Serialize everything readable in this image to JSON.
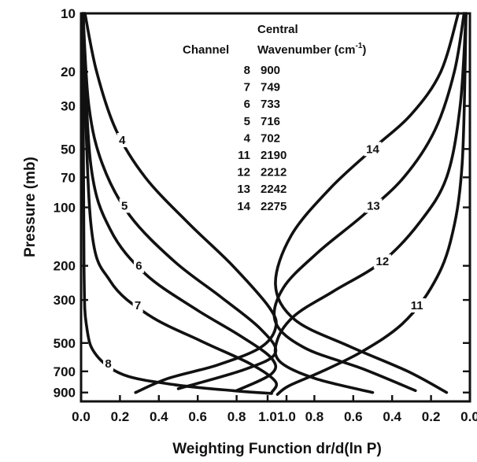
{
  "chart_data": {
    "type": "line",
    "title": "",
    "xlabel": "Weighting Function dr/d(ln P)",
    "ylabel": "Pressure (mb)",
    "y_scale": "log",
    "y_reversed": true,
    "ylim": [
      10,
      1000
    ],
    "y_ticks": [
      10,
      20,
      30,
      50,
      70,
      100,
      200,
      300,
      500,
      700,
      900
    ],
    "y_tick_labels": [
      "10",
      "20",
      "30",
      "50",
      "70",
      "100",
      "200",
      "300",
      "500",
      "700",
      "900"
    ],
    "left_panel": {
      "xlim": [
        0,
        1
      ],
      "x_ticks": [
        0,
        0.2,
        0.4,
        0.6,
        0.8,
        1.0
      ],
      "x_tick_labels": [
        "0.0",
        "0.2",
        "0.4",
        "0.6",
        "0.8",
        "1.0"
      ]
    },
    "right_panel": {
      "xlim": [
        1,
        0
      ],
      "x_ticks": [
        1.0,
        0.8,
        0.6,
        0.4,
        0.2,
        0.0
      ],
      "x_tick_labels": [
        "1.0",
        "0.8",
        "0.6",
        "0.4",
        "0.2",
        "0.0"
      ]
    },
    "table": {
      "header_channel": "Channel",
      "header_central": "Central",
      "header_wavenumber": "Wavenumber (cm",
      "header_superscript": "-1",
      "header_close": ")",
      "rows": [
        {
          "channel": "8",
          "wavenumber": "900"
        },
        {
          "channel": "7",
          "wavenumber": "749"
        },
        {
          "channel": "6",
          "wavenumber": "733"
        },
        {
          "channel": "5",
          "wavenumber": "716"
        },
        {
          "channel": "4",
          "wavenumber": "702"
        },
        {
          "channel": "11",
          "wavenumber": "2190"
        },
        {
          "channel": "12",
          "wavenumber": "2212"
        },
        {
          "channel": "13",
          "wavenumber": "2242"
        },
        {
          "channel": "14",
          "wavenumber": "2275"
        }
      ]
    },
    "series": [
      {
        "name": "4",
        "panel": "left",
        "peak_pressure": 400,
        "label_pressure": 45,
        "x": [
          0.02,
          0.08,
          0.18,
          0.33,
          0.55,
          0.78,
          0.97,
          1.0,
          0.92,
          0.7,
          0.45,
          0.28
        ],
        "y": [
          10,
          20,
          40,
          70,
          120,
          200,
          330,
          420,
          530,
          650,
          760,
          900
        ]
      },
      {
        "name": "5",
        "panel": "left",
        "peak_pressure": 550,
        "label_pressure": 98,
        "x": [
          0.01,
          0.04,
          0.11,
          0.25,
          0.48,
          0.72,
          0.92,
          1.0,
          0.85,
          0.5
        ],
        "y": [
          10,
          30,
          60,
          110,
          190,
          290,
          420,
          560,
          680,
          860
        ]
      },
      {
        "name": "6",
        "panel": "left",
        "peak_pressure": 660,
        "label_pressure": 200,
        "x": [
          0.01,
          0.05,
          0.15,
          0.33,
          0.58,
          0.82,
          0.98,
          0.98,
          0.8
        ],
        "y": [
          10,
          60,
          130,
          220,
          330,
          460,
          600,
          720,
          880
        ]
      },
      {
        "name": "7",
        "panel": "left",
        "peak_pressure": 800,
        "label_pressure": 320,
        "x": [
          0.01,
          0.05,
          0.15,
          0.35,
          0.62,
          0.87,
          1.0,
          0.98
        ],
        "y": [
          10,
          120,
          240,
          360,
          490,
          640,
          790,
          900
        ]
      },
      {
        "name": "8",
        "panel": "left",
        "peak_pressure": 900,
        "label_pressure": 640,
        "x": [
          0.01,
          0.015,
          0.03,
          0.08,
          0.22,
          0.48,
          0.78,
          0.98
        ],
        "y": [
          10,
          200,
          420,
          580,
          730,
          820,
          880,
          910
        ]
      },
      {
        "name": "11",
        "panel": "right",
        "peak_pressure": 920,
        "label_pressure": 320,
        "x": [
          0.02,
          0.04,
          0.1,
          0.2,
          0.35,
          0.55,
          0.76,
          0.93,
          0.99
        ],
        "y": [
          10,
          60,
          150,
          260,
          400,
          550,
          700,
          830,
          920
        ]
      },
      {
        "name": "12",
        "panel": "right",
        "peak_pressure": 650,
        "label_pressure": 190,
        "x": [
          0.02,
          0.05,
          0.12,
          0.26,
          0.45,
          0.7,
          0.9,
          0.99,
          0.98,
          0.8,
          0.5
        ],
        "y": [
          10,
          30,
          70,
          120,
          190,
          270,
          360,
          480,
          620,
          760,
          900
        ]
      },
      {
        "name": "13",
        "panel": "right",
        "peak_pressure": 470,
        "label_pressure": 98,
        "x": [
          0.03,
          0.08,
          0.18,
          0.34,
          0.55,
          0.78,
          0.96,
          1.0,
          0.85,
          0.55,
          0.28
        ],
        "y": [
          10,
          20,
          40,
          70,
          110,
          170,
          260,
          390,
          530,
          680,
          880
        ]
      },
      {
        "name": "14",
        "panel": "right",
        "peak_pressure": 320,
        "label_pressure": 50,
        "x": [
          0.06,
          0.15,
          0.3,
          0.5,
          0.72,
          0.92,
          1.0,
          0.9,
          0.62,
          0.32,
          0.12
        ],
        "y": [
          10,
          20,
          33,
          50,
          80,
          140,
          250,
          380,
          520,
          700,
          900
        ]
      }
    ]
  }
}
